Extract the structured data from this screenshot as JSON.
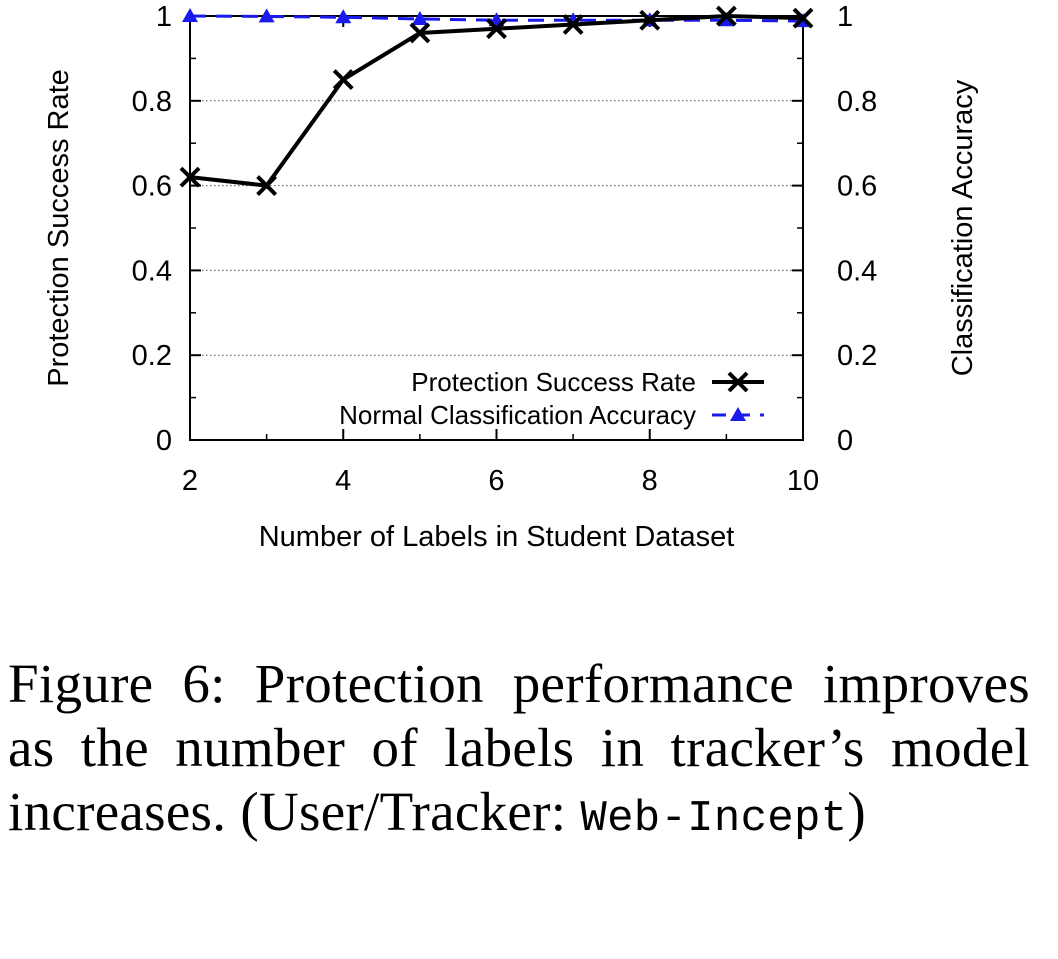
{
  "chart_data": {
    "type": "line",
    "xlabel": "Number of Labels in Student Dataset",
    "ylabel": "Protection Success Rate",
    "y2label": "Classification Accuracy",
    "xlim": [
      2,
      10
    ],
    "ylim": [
      0,
      1
    ],
    "y2lim": [
      0,
      1
    ],
    "xticks": [
      "2",
      "4",
      "6",
      "8",
      "10"
    ],
    "yticks": [
      "0",
      "0.2",
      "0.4",
      "0.6",
      "0.8",
      "1"
    ],
    "y2ticks": [
      "0",
      "0.2",
      "0.4",
      "0.6",
      "0.8",
      "1"
    ],
    "grid": "horizontal dotted",
    "legend_position": "bottom-right",
    "x": [
      2,
      3,
      4,
      5,
      6,
      7,
      8,
      9,
      10
    ],
    "series": [
      {
        "name": "Protection Success Rate",
        "axis": "left",
        "color": "#000000",
        "marker": "x",
        "line": "solid",
        "values": [
          0.62,
          0.6,
          0.85,
          0.96,
          0.97,
          0.98,
          0.99,
          1.0,
          0.995
        ]
      },
      {
        "name": "Normal Classification Accuracy",
        "axis": "right",
        "color": "#1a1aee",
        "marker": "triangle",
        "line": "dashed",
        "values": [
          1.0,
          0.999,
          0.997,
          0.993,
          0.99,
          0.99,
          0.99,
          0.99,
          0.988
        ]
      }
    ]
  },
  "caption": {
    "text": "Figure 6: Protection performance improves as the number of labels in tracker’s model increases. (User/Tracker: ",
    "code": "Web-Incept",
    "end": ")"
  }
}
